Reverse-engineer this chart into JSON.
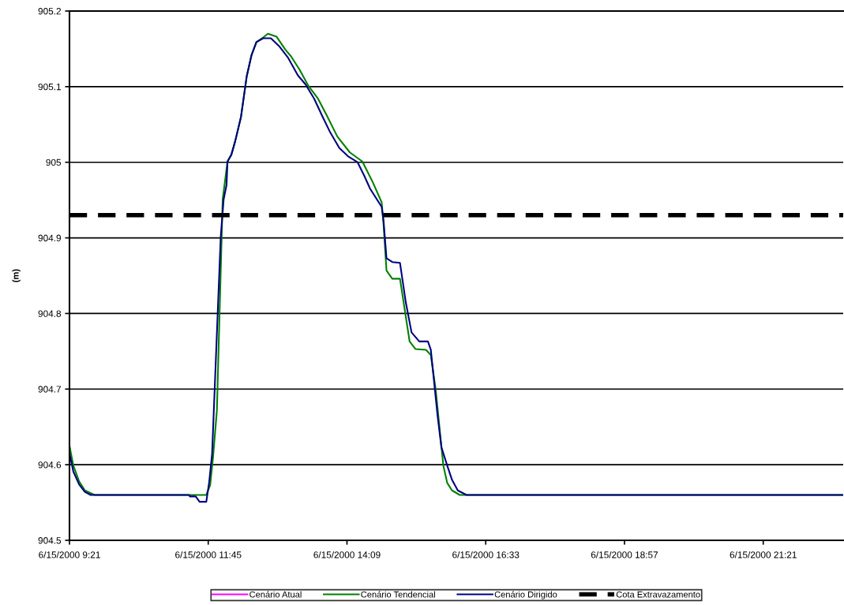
{
  "chart_data": {
    "type": "line",
    "ylabel": "(m)",
    "ylim": [
      904.5,
      905.2
    ],
    "yticks": [
      904.5,
      904.6,
      904.7,
      904.8,
      904.9,
      905,
      905.1,
      905.2
    ],
    "xlim": [
      "2000-06-15T09:21",
      "2000-06-15T22:44"
    ],
    "xticks": [
      {
        "value": "2000-06-15T09:21",
        "label": "6/15/2000 9:21"
      },
      {
        "value": "2000-06-15T11:45",
        "label": "6/15/2000 11:45"
      },
      {
        "value": "2000-06-15T14:09",
        "label": "6/15/2000 14:09"
      },
      {
        "value": "2000-06-15T16:33",
        "label": "6/15/2000 16:33"
      },
      {
        "value": "2000-06-15T18:57",
        "label": "6/15/2000 18:57"
      },
      {
        "value": "2000-06-15T21:21",
        "label": "6/15/2000 21:21"
      }
    ],
    "grid": "y",
    "legend": "bottom",
    "marker": "none",
    "line_style": "solid",
    "series": [
      {
        "name": "Cenário Atual",
        "color": "#ff00ff"
      },
      {
        "name": "Cenário Tendencial",
        "color": "#008000",
        "x": [
          "2000-06-15T09:21",
          "2000-06-15T09:25",
          "2000-06-15T09:31",
          "2000-06-15T09:37",
          "2000-06-15T09:47",
          "2000-06-15T11:43",
          "2000-06-15T11:47",
          "2000-06-15T11:50",
          "2000-06-15T11:54",
          "2000-06-15T12:00",
          "2000-06-15T12:05",
          "2000-06-15T12:09",
          "2000-06-15T12:13",
          "2000-06-15T12:19",
          "2000-06-15T12:25",
          "2000-06-15T12:30",
          "2000-06-15T12:35",
          "2000-06-15T12:42",
          "2000-06-15T12:47",
          "2000-06-15T12:56",
          "2000-06-15T13:05",
          "2000-06-15T13:11",
          "2000-06-15T13:20",
          "2000-06-15T13:29",
          "2000-06-15T13:39",
          "2000-06-15T13:48",
          "2000-06-15T13:59",
          "2000-06-15T14:12",
          "2000-06-15T14:25",
          "2000-06-15T14:36",
          "2000-06-15T14:45",
          "2000-06-15T14:47",
          "2000-06-15T14:50",
          "2000-06-15T14:56",
          "2000-06-15T15:04",
          "2000-06-15T15:14",
          "2000-06-15T15:20",
          "2000-06-15T15:31",
          "2000-06-15T15:36",
          "2000-06-15T15:41",
          "2000-06-15T15:49",
          "2000-06-15T15:53",
          "2000-06-15T15:58",
          "2000-06-15T16:06",
          "2000-06-15T22:44"
        ],
        "values": [
          904.625,
          904.599,
          904.578,
          904.566,
          904.56,
          904.56,
          904.573,
          904.61,
          904.672,
          904.951,
          905.001,
          905.01,
          905.028,
          905.06,
          905.114,
          905.142,
          905.159,
          905.165,
          905.17,
          905.166,
          905.149,
          905.14,
          905.122,
          905.101,
          905.084,
          905.062,
          905.034,
          905.013,
          905.001,
          904.973,
          904.947,
          904.917,
          904.857,
          904.846,
          904.846,
          904.763,
          904.753,
          904.752,
          904.745,
          904.7,
          904.599,
          904.576,
          904.566,
          904.56,
          904.56
        ]
      },
      {
        "name": "Cenário Dirigido",
        "color": "#000080",
        "x": [
          "2000-06-15T09:21",
          "2000-06-15T09:25",
          "2000-06-15T09:31",
          "2000-06-15T09:37",
          "2000-06-15T09:43",
          "2000-06-15T11:25",
          "2000-06-15T11:26",
          "2000-06-15T11:32",
          "2000-06-15T11:36",
          "2000-06-15T11:43",
          "2000-06-15T11:46",
          "2000-06-15T11:49",
          "2000-06-15T11:58",
          "2000-06-15T12:01",
          "2000-06-15T12:04",
          "2000-06-15T12:05",
          "2000-06-15T12:09",
          "2000-06-15T12:13",
          "2000-06-15T12:19",
          "2000-06-15T12:25",
          "2000-06-15T12:30",
          "2000-06-15T12:35",
          "2000-06-15T12:42",
          "2000-06-15T12:50",
          "2000-06-15T12:59",
          "2000-06-15T13:08",
          "2000-06-15T13:18",
          "2000-06-15T13:26",
          "2000-06-15T13:35",
          "2000-06-15T13:43",
          "2000-06-15T13:51",
          "2000-06-15T14:01",
          "2000-06-15T14:10",
          "2000-06-15T14:20",
          "2000-06-15T14:27",
          "2000-06-15T14:33",
          "2000-06-15T14:45",
          "2000-06-15T14:47",
          "2000-06-15T14:50",
          "2000-06-15T14:56",
          "2000-06-15T15:04",
          "2000-06-15T15:10",
          "2000-06-15T15:16",
          "2000-06-15T15:24",
          "2000-06-15T15:33",
          "2000-06-15T15:36",
          "2000-06-15T15:43",
          "2000-06-15T15:47",
          "2000-06-15T15:53",
          "2000-06-15T15:58",
          "2000-06-15T16:04",
          "2000-06-15T16:13",
          "2000-06-15T22:44"
        ],
        "values": [
          904.615,
          904.591,
          904.574,
          904.564,
          904.56,
          904.56,
          904.558,
          904.558,
          904.551,
          904.551,
          904.577,
          904.614,
          904.902,
          904.951,
          904.97,
          905.001,
          905.01,
          905.028,
          905.06,
          905.114,
          905.142,
          905.159,
          905.164,
          905.164,
          905.153,
          905.138,
          905.115,
          905.103,
          905.084,
          905.062,
          905.041,
          905.019,
          905.008,
          905.0,
          904.982,
          904.965,
          904.941,
          904.922,
          904.873,
          904.868,
          904.867,
          904.815,
          904.775,
          904.763,
          904.763,
          904.752,
          904.665,
          904.623,
          904.599,
          904.58,
          904.566,
          904.56,
          904.56
        ]
      }
    ],
    "ref_lines": [
      {
        "axis": "y",
        "value": 904.93,
        "label": "Cota Extravazamento",
        "color": "#000000",
        "line_style": "dashed"
      }
    ]
  }
}
